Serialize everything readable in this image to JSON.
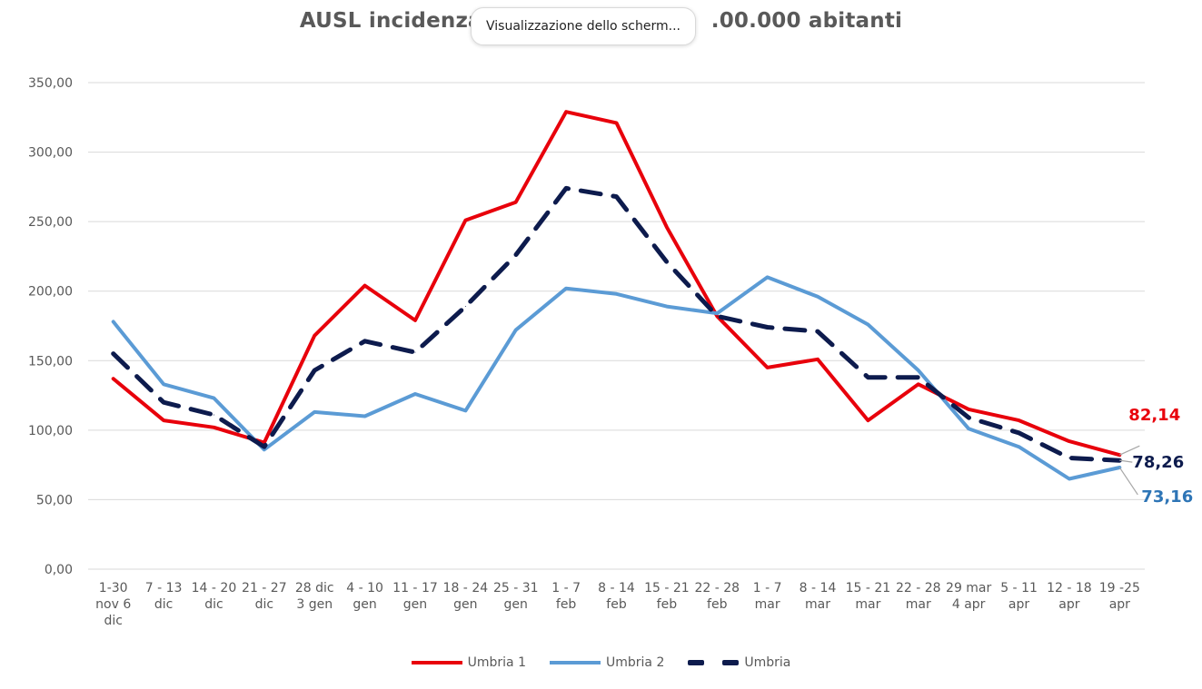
{
  "tooltip": {
    "text": "Visualizzazione dello scherm..."
  },
  "chart_data": {
    "type": "line",
    "title_left": "AUSL incidenza",
    "title_right": ".00.000 abitanti",
    "ylim": [
      0,
      350
    ],
    "yticks": [
      "0,00",
      "50,00",
      "100,00",
      "150,00",
      "200,00",
      "250,00",
      "300,00",
      "350,00"
    ],
    "grid": true,
    "legend_position": "bottom",
    "categories": [
      [
        "1-30",
        "nov 6",
        "dic"
      ],
      [
        "7 - 13",
        "dic"
      ],
      [
        "14 - 20",
        "dic"
      ],
      [
        "21 - 27",
        "dic"
      ],
      [
        "28 dic",
        "3 gen"
      ],
      [
        "4 - 10",
        "gen"
      ],
      [
        "11 - 17",
        "gen"
      ],
      [
        "18 - 24",
        "gen"
      ],
      [
        "25 - 31",
        "gen"
      ],
      [
        "1 - 7",
        "feb"
      ],
      [
        "8 - 14",
        "feb"
      ],
      [
        "15 - 21",
        "feb"
      ],
      [
        "22 - 28",
        "feb"
      ],
      [
        "1 - 7",
        "mar"
      ],
      [
        "8 - 14",
        "mar"
      ],
      [
        "15 - 21",
        "mar"
      ],
      [
        "22 - 28",
        "mar"
      ],
      [
        "29 mar",
        "4 apr"
      ],
      [
        "5 - 11",
        "apr"
      ],
      [
        "12 - 18",
        "apr"
      ],
      [
        "19 -25",
        "apr"
      ]
    ],
    "series": [
      {
        "name": "Umbria 1",
        "color": "#e8000b",
        "style": "solid",
        "values": [
          137,
          107,
          102,
          91,
          168,
          204,
          179,
          251,
          264,
          329,
          321,
          246,
          182,
          145,
          151,
          107,
          133,
          115,
          107,
          92,
          82.14
        ],
        "end_label": "82,14",
        "end_label_color": "#e8000b"
      },
      {
        "name": "Umbria 2",
        "color": "#5b9bd5",
        "style": "solid",
        "values": [
          178,
          133,
          123,
          86,
          113,
          110,
          126,
          114,
          172,
          202,
          198,
          189,
          184,
          210,
          196,
          176,
          143,
          101,
          88,
          65,
          73.16
        ],
        "end_label": "73,16",
        "end_label_color": "#2e75b6"
      },
      {
        "name": "Umbria",
        "color": "#0d1b4d",
        "style": "dashed",
        "values": [
          155,
          120,
          111,
          88,
          143,
          164,
          156,
          189,
          226,
          274,
          268,
          221,
          182,
          174,
          171,
          138,
          138,
          109,
          98,
          80,
          78.26
        ],
        "end_label": "78,26",
        "end_label_color": "#0d1b4d"
      }
    ]
  }
}
